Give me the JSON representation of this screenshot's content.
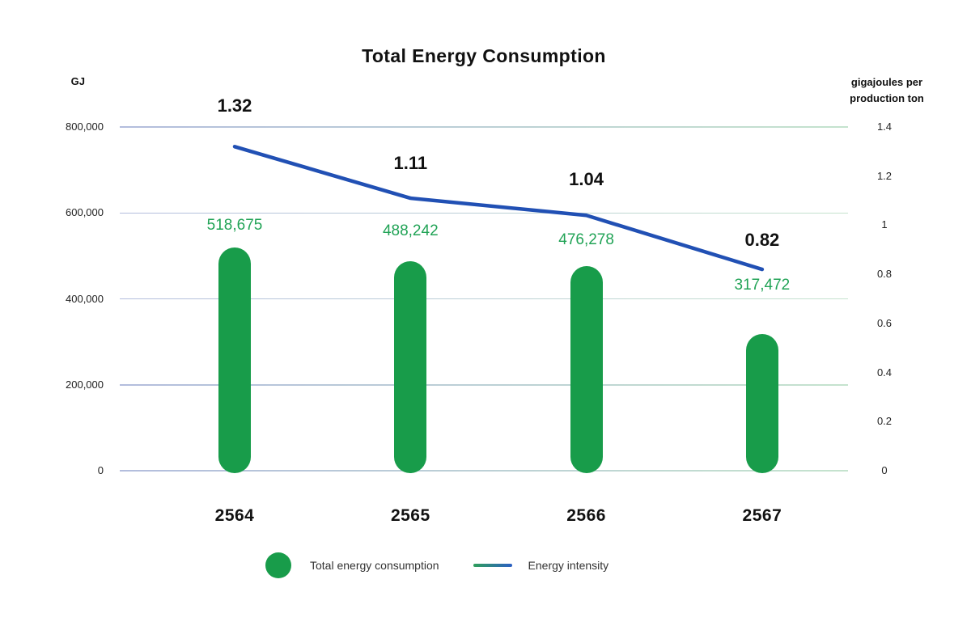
{
  "chart_data": {
    "type": "combo-bar-line",
    "title": "Total Energy Consumption",
    "categories": [
      "2564",
      "2565",
      "2566",
      "2567"
    ],
    "series": [
      {
        "name": "Total energy consumption",
        "type": "bar",
        "axis": "left",
        "values": [
          518675,
          488242,
          476278,
          317472
        ],
        "labels": [
          "518,675",
          "488,242",
          "476,278",
          "317,472"
        ],
        "color": "#189c4a",
        "label_color": "#21a356"
      },
      {
        "name": "Energy intensity",
        "type": "line",
        "axis": "right",
        "values": [
          1.32,
          1.11,
          1.04,
          0.82
        ],
        "labels": [
          "1.32",
          "1.11",
          "1.04",
          "0.82"
        ],
        "color": "#2150b4",
        "label_color": "#111111"
      }
    ],
    "left_axis": {
      "title": "GJ",
      "min": 0,
      "max": 800000,
      "ticks": [
        0,
        200000,
        400000,
        600000,
        800000
      ],
      "tick_labels": [
        "0",
        "200,000",
        "400,000",
        "600,000",
        "800,000"
      ]
    },
    "right_axis": {
      "title_lines": [
        "gigajoules per",
        "production ton"
      ],
      "min": 0,
      "max": 1.4,
      "ticks": [
        0,
        0.2,
        0.4,
        0.6,
        0.8,
        1,
        1.2,
        1.4
      ],
      "tick_labels": [
        "0",
        "0.2",
        "0.4",
        "0.6",
        "0.8",
        "1",
        "1.2",
        "1.4"
      ]
    },
    "grid": {
      "on": true,
      "color_left": "#b3bddd",
      "color_right": "#c5e3ce"
    },
    "legend": [
      {
        "label": "Total energy consumption",
        "marker": "circle",
        "color": "#189c4a"
      },
      {
        "label": "Energy intensity",
        "marker": "line",
        "color_start": "#2f9e5b",
        "color_end": "#2b5fc4"
      }
    ]
  }
}
